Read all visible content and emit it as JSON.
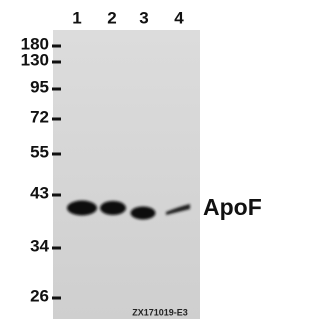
{
  "lanes": [
    "1",
    "2",
    "3",
    "4"
  ],
  "markers": [
    "180",
    "130",
    "95",
    "72",
    "55",
    "43",
    "34",
    "26"
  ],
  "protein": "ApoF",
  "code": "ZX171019-E3"
}
